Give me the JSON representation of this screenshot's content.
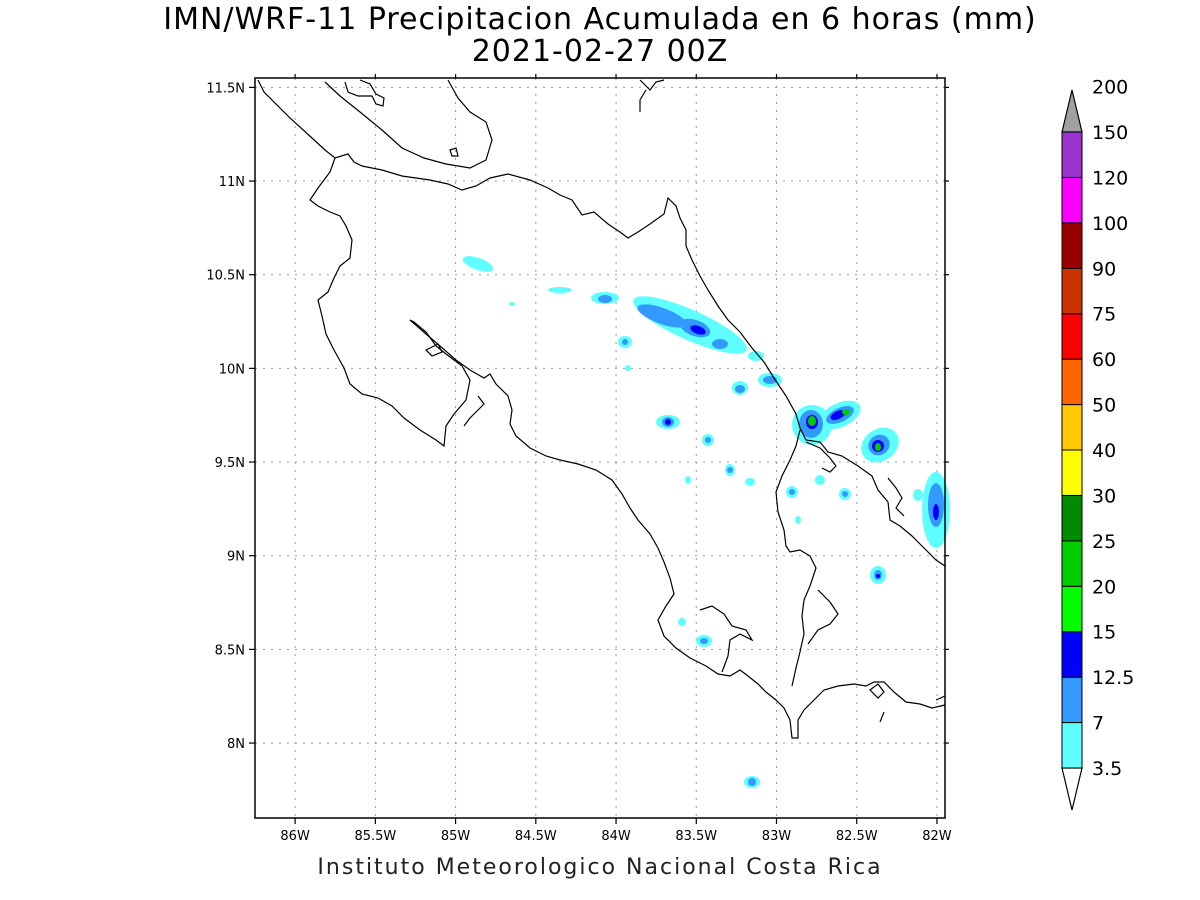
{
  "header": {
    "title": "IMN/WRF-11 Precipitacion Acumulada en 6 horas (mm)",
    "subtitle": "2021-02-27 00Z"
  },
  "footer": "Instituto Meteorologico Nacional Costa Rica",
  "map": {
    "lon_range": [
      -86.25,
      -81.95
    ],
    "lat_range": [
      7.6,
      11.55
    ],
    "lon_ticks": [
      {
        "value": -86,
        "label": "86W"
      },
      {
        "value": -85.5,
        "label": "85.5W"
      },
      {
        "value": -85,
        "label": "85W"
      },
      {
        "value": -84.5,
        "label": "84.5W"
      },
      {
        "value": -84,
        "label": "84W"
      },
      {
        "value": -83.5,
        "label": "83.5W"
      },
      {
        "value": -83,
        "label": "83W"
      },
      {
        "value": -82.5,
        "label": "82.5W"
      },
      {
        "value": -82,
        "label": "82W"
      }
    ],
    "lat_ticks": [
      {
        "value": 11.5,
        "label": "11.5N"
      },
      {
        "value": 11,
        "label": "11N"
      },
      {
        "value": 10.5,
        "label": "10.5N"
      },
      {
        "value": 10,
        "label": "10N"
      },
      {
        "value": 9.5,
        "label": "9.5N"
      },
      {
        "value": 9,
        "label": "9N"
      },
      {
        "value": 8.5,
        "label": "8.5N"
      },
      {
        "value": 8,
        "label": "8N"
      }
    ],
    "grid": true
  },
  "colorbar": {
    "levels": [
      {
        "label": "3.5",
        "color": "#5fffff"
      },
      {
        "label": "7",
        "color": "#3399ff"
      },
      {
        "label": "12.5",
        "color": "#0000ff"
      },
      {
        "label": "15",
        "color": "#00ff00"
      },
      {
        "label": "20",
        "color": "#00cc00"
      },
      {
        "label": "25",
        "color": "#008a00"
      },
      {
        "label": "30",
        "color": "#ffff00"
      },
      {
        "label": "40",
        "color": "#ffc800"
      },
      {
        "label": "50",
        "color": "#ff6600"
      },
      {
        "label": "60",
        "color": "#ff0000"
      },
      {
        "label": "75",
        "color": "#cc3300"
      },
      {
        "label": "90",
        "color": "#990000"
      },
      {
        "label": "100",
        "color": "#ff00ff"
      },
      {
        "label": "120",
        "color": "#9933cc"
      },
      {
        "label": "150",
        "color": "#f2f2f2"
      },
      {
        "label": "200",
        "color": "#a0a0a0"
      }
    ]
  }
}
